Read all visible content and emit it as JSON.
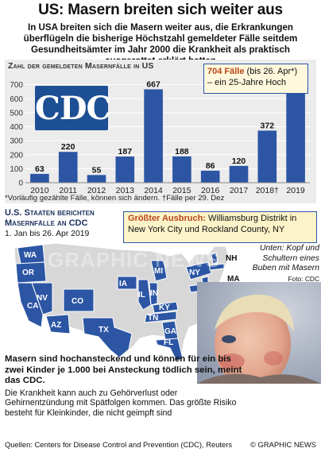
{
  "headline": "US: Masern breiten sich weiter aus",
  "intro": "In USA breiten sich die Masern weiter aus, die Erkrankungen überflügeln die bisherige Höchstzahl  gemeldeter Fälle seitdem Gesundheitsämter im Jahr 2000 die Krankheit als praktisch ausgerottet erklärt hatten",
  "chart_data": {
    "type": "bar",
    "title": "Zahl der gemeldeten Masernfälle in US",
    "categories": [
      "2010",
      "2011",
      "2012",
      "2013",
      "2014",
      "2015",
      "2016",
      "2017",
      "2018†",
      "2019"
    ],
    "values": [
      63,
      220,
      55,
      187,
      667,
      188,
      86,
      120,
      372,
      704
    ],
    "ylim": [
      0,
      800
    ],
    "yticks": [
      0,
      100,
      200,
      300,
      400,
      500,
      600,
      700
    ],
    "grid": true,
    "xlabel": "",
    "ylabel": "",
    "colors": {
      "bar": "#2c56a4",
      "panel": "#ececec",
      "grid": "#ffffff"
    }
  },
  "logo_text": "CDC",
  "callout_2019": {
    "highlight": "704 Fälle",
    "rest": " (bis 26. Apr*) – ein 25-Jahre Hoch"
  },
  "footnote": "*Vorläufig gezählte Fälle, können sich ändern. †Fälle per 29. Dez",
  "map": {
    "title": "U.S. Staaten berichten Masernfälle an CDC",
    "subtitle": "1. Jan bis 26. Apr 2019",
    "labels": [
      "WA",
      "OR",
      "NV",
      "CA",
      "AZ",
      "CO",
      "TX",
      "MI",
      "IA",
      "IL",
      "IN",
      "KY",
      "TN",
      "GA",
      "FL",
      "NH",
      "MA",
      "NJ",
      "MD",
      "NY"
    ],
    "colors": {
      "affected": "#2c56a4",
      "other": "#d7d7d7"
    }
  },
  "outbreak": {
    "highlight": "Größter Ausbruch:",
    "rest": " Williamsburg Distrikt in New York City und Rockland County, NY"
  },
  "photo": {
    "caption": "Unten: Kopf und Schultern eines Buben mit Masern",
    "credit": "Foto: CDC"
  },
  "body": {
    "bold": "Masern sind hochansteckend und können für ein bis zwei Kinder je 1.000 bei Ansteckung tödlich sein, meint das CDC.",
    "text": "Die Krankheit kann auch zu Gehörverlust oder Gehirnentzündung mit Spätfolgen kommen. Das größte Risiko besteht für Kleinkinder, die nicht geimpft sind"
  },
  "source": "Quellen: Centers for Disease Control and Prevention (CDC), Reuters",
  "copyright": "© GRAPHIC NEWS",
  "watermark": "GRAPHIC NEWS"
}
